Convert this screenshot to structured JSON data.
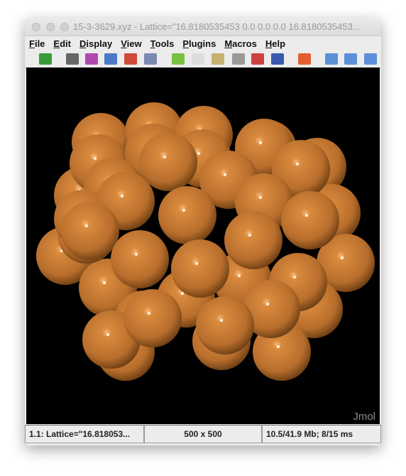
{
  "window": {
    "title": "15-3-3629.xyz - Lattice=\"16.8180535453 0.0 0.0 0.0 16.8180535453..."
  },
  "menu": [
    "File",
    "Edit",
    "Display",
    "View",
    "Tools",
    "Plugins",
    "Macros",
    "Help"
  ],
  "status": [
    "1.1: Lattice=\"16.818053...",
    "500 x 500",
    "10.5/41.9 Mb;   8/15 ms"
  ],
  "watermark": "Jmol"
}
